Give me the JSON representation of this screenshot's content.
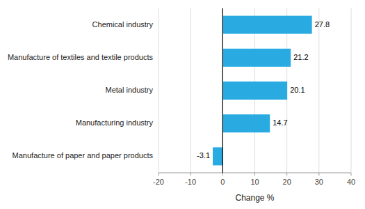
{
  "chart_data": {
    "type": "bar",
    "orientation": "horizontal",
    "categories": [
      "Manufacture of paper and paper products",
      "Manufacturing industry",
      "Metal industry",
      "Manufacture of textiles and textile products",
      "Chemical industry"
    ],
    "values": [
      -3.1,
      14.7,
      20.1,
      21.2,
      27.8
    ],
    "color": "#29abe2",
    "xlabel": "Change %",
    "xlim": [
      -20,
      40
    ],
    "xticks": [
      -20,
      -10,
      0,
      10,
      20,
      30,
      40
    ],
    "grid": true,
    "data_labels": true
  }
}
